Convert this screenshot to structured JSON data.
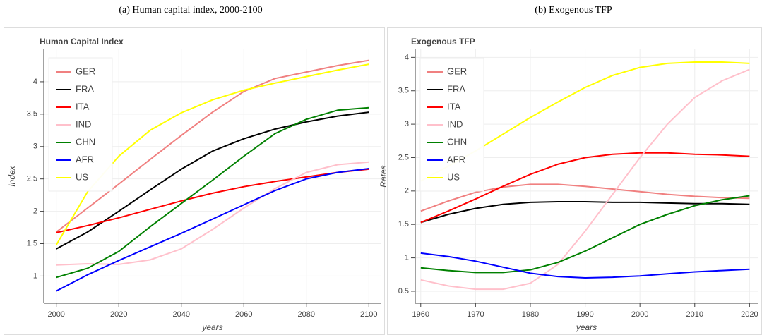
{
  "chart_data": [
    {
      "type": "line",
      "caption": "(a) Human capital index, 2000-2100",
      "title": "Human Capital Index",
      "xlabel": "years",
      "ylabel": "Index",
      "x": [
        2000,
        2010,
        2020,
        2030,
        2040,
        2050,
        2060,
        2070,
        2080,
        2090,
        2100
      ],
      "series": [
        {
          "name": "GER",
          "color": "#f08080",
          "values": [
            1.68,
            2.05,
            2.42,
            2.8,
            3.17,
            3.53,
            3.85,
            4.05,
            4.15,
            4.25,
            4.33
          ]
        },
        {
          "name": "FRA",
          "color": "#000000",
          "values": [
            1.42,
            1.68,
            2.0,
            2.33,
            2.65,
            2.93,
            3.12,
            3.27,
            3.38,
            3.47,
            3.53
          ]
        },
        {
          "name": "ITA",
          "color": "#ff0000",
          "values": [
            1.67,
            1.78,
            1.9,
            2.03,
            2.16,
            2.28,
            2.38,
            2.46,
            2.53,
            2.6,
            2.65
          ]
        },
        {
          "name": "IND",
          "color": "#ffc0cb",
          "values": [
            1.17,
            1.19,
            1.18,
            1.25,
            1.42,
            1.72,
            2.05,
            2.35,
            2.6,
            2.72,
            2.76
          ]
        },
        {
          "name": "CHN",
          "color": "#008000",
          "values": [
            0.98,
            1.12,
            1.38,
            1.76,
            2.12,
            2.48,
            2.85,
            3.2,
            3.42,
            3.56,
            3.6
          ]
        },
        {
          "name": "AFR",
          "color": "#0000ff",
          "values": [
            0.77,
            1.02,
            1.24,
            1.45,
            1.66,
            1.88,
            2.1,
            2.32,
            2.5,
            2.6,
            2.66
          ]
        },
        {
          "name": "US",
          "color": "#ffff00",
          "values": [
            1.48,
            2.3,
            2.85,
            3.25,
            3.52,
            3.72,
            3.87,
            3.98,
            4.08,
            4.18,
            4.27
          ]
        }
      ],
      "xlim": [
        1996,
        2104
      ],
      "xticks": [
        2000,
        2020,
        2040,
        2060,
        2080,
        2100
      ],
      "ylim": [
        0.58,
        4.5
      ],
      "yticks": [
        1,
        1.5,
        2,
        2.5,
        3,
        3.5,
        4
      ],
      "grid": true,
      "legend": "top-left"
    },
    {
      "type": "line",
      "caption": "(b) Exogenous TFP",
      "title": "Exogenous TFP",
      "xlabel": "years",
      "ylabel": "Rates",
      "x": [
        1960,
        1965,
        1970,
        1975,
        1980,
        1985,
        1990,
        1995,
        2000,
        2005,
        2010,
        2015,
        2020
      ],
      "series": [
        {
          "name": "GER",
          "color": "#f08080",
          "values": [
            1.7,
            1.85,
            1.98,
            2.06,
            2.1,
            2.1,
            2.07,
            2.03,
            1.99,
            1.95,
            1.92,
            1.9,
            1.89
          ]
        },
        {
          "name": "FRA",
          "color": "#000000",
          "values": [
            1.53,
            1.65,
            1.74,
            1.8,
            1.83,
            1.84,
            1.84,
            1.83,
            1.83,
            1.82,
            1.81,
            1.81,
            1.8
          ]
        },
        {
          "name": "ITA",
          "color": "#ff0000",
          "values": [
            1.53,
            1.7,
            1.88,
            2.07,
            2.25,
            2.4,
            2.5,
            2.55,
            2.57,
            2.57,
            2.55,
            2.54,
            2.52
          ]
        },
        {
          "name": "IND",
          "color": "#ffc0cb",
          "values": [
            0.67,
            0.58,
            0.53,
            0.53,
            0.62,
            0.9,
            1.4,
            1.95,
            2.5,
            3.0,
            3.4,
            3.65,
            3.82
          ]
        },
        {
          "name": "CHN",
          "color": "#008000",
          "values": [
            0.85,
            0.81,
            0.78,
            0.78,
            0.82,
            0.93,
            1.1,
            1.3,
            1.5,
            1.65,
            1.78,
            1.87,
            1.93
          ]
        },
        {
          "name": "AFR",
          "color": "#0000ff",
          "values": [
            1.07,
            1.02,
            0.95,
            0.86,
            0.77,
            0.72,
            0.7,
            0.71,
            0.73,
            0.76,
            0.79,
            0.81,
            0.83
          ]
        },
        {
          "name": "US",
          "color": "#ffff00",
          "values": [
            2.15,
            2.37,
            2.6,
            2.85,
            3.1,
            3.33,
            3.55,
            3.73,
            3.85,
            3.91,
            3.93,
            3.93,
            3.91
          ]
        }
      ],
      "xlim": [
        1959,
        2021.5
      ],
      "xticks": [
        1960,
        1970,
        1980,
        1990,
        2000,
        2010,
        2020
      ],
      "ylim": [
        0.32,
        4.12
      ],
      "yticks": [
        0.5,
        1,
        1.5,
        2,
        2.5,
        3,
        3.5,
        4
      ],
      "grid": true,
      "legend": "top-left"
    }
  ]
}
